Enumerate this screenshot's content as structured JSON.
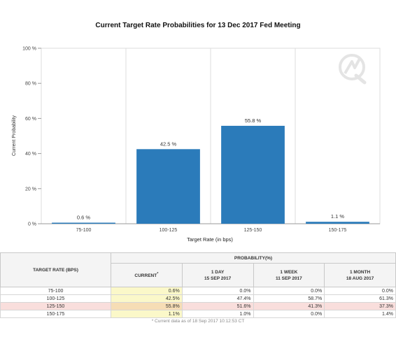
{
  "chart_data": {
    "type": "bar",
    "title": "Current Target Rate Probabilities for 13 Dec 2017 Fed Meeting",
    "xlabel": "Target Rate (in bps)",
    "ylabel": "Current Probability",
    "categories": [
      "75-100",
      "100-125",
      "125-150",
      "150-175"
    ],
    "values": [
      0.6,
      42.5,
      55.8,
      1.1
    ],
    "data_labels": [
      "0.6 %",
      "42.5 %",
      "55.8 %",
      "1.1 %"
    ],
    "ylim": [
      0,
      100
    ],
    "yticks": [
      0,
      20,
      40,
      60,
      80,
      100
    ],
    "ytick_labels": [
      "0 %",
      "20 %",
      "40 %",
      "60 %",
      "80 %",
      "100 %"
    ],
    "grid": "vertical",
    "bar_color": "#2b7bba"
  },
  "table": {
    "rate_header": "TARGET RATE (BPS)",
    "prob_header": "PROBABILITY(%)",
    "columns": [
      {
        "line1": "CURRENT",
        "marker": "*",
        "line2": ""
      },
      {
        "line1": "1 DAY",
        "line2": "15 SEP 2017"
      },
      {
        "line1": "1 WEEK",
        "line2": "11 SEP 2017"
      },
      {
        "line1": "1 MONTH",
        "line2": "18 AUG 2017"
      }
    ],
    "rows": [
      {
        "rate": "75-100",
        "values": [
          "0.6%",
          "0.0%",
          "0.0%",
          "0.0%"
        ]
      },
      {
        "rate": "100-125",
        "values": [
          "42.5%",
          "47.4%",
          "58.7%",
          "61.3%"
        ]
      },
      {
        "rate": "125-150",
        "values": [
          "55.8%",
          "51.6%",
          "41.3%",
          "37.3%"
        ]
      },
      {
        "rate": "150-175",
        "values": [
          "1.1%",
          "1.0%",
          "0.0%",
          "1.4%"
        ]
      }
    ],
    "highlight_row": 2,
    "footnote": "* Current data as of 18 Sep 2017 10:12:53 CT"
  }
}
